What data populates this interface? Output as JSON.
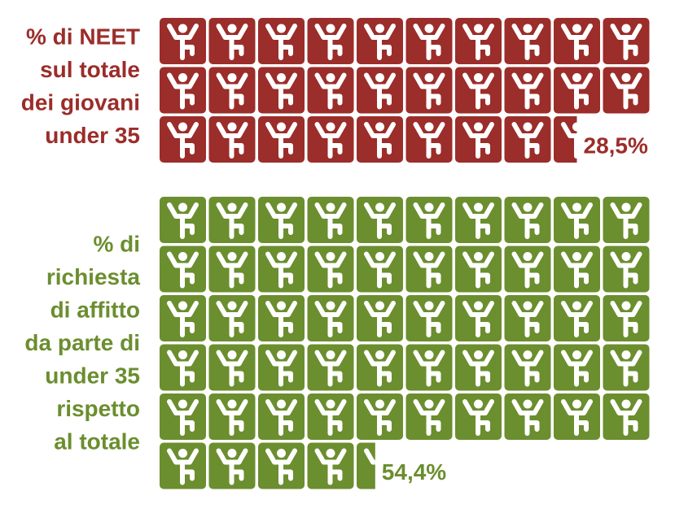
{
  "chart_data": [
    {
      "type": "pictogram",
      "title": [
        "% di NEET",
        "sul totale",
        "dei giovani",
        "under 35"
      ],
      "value": 28.5,
      "value_label": "28,5%",
      "color": "#9b2d2a"
    },
    {
      "type": "pictogram",
      "title": [
        "% di",
        "richiesta",
        "di affitto",
        "da parte di",
        "under 35",
        "rispetto",
        "al totale"
      ],
      "value": 54.4,
      "value_label": "54,4%",
      "color": "#6b8e2f"
    }
  ]
}
